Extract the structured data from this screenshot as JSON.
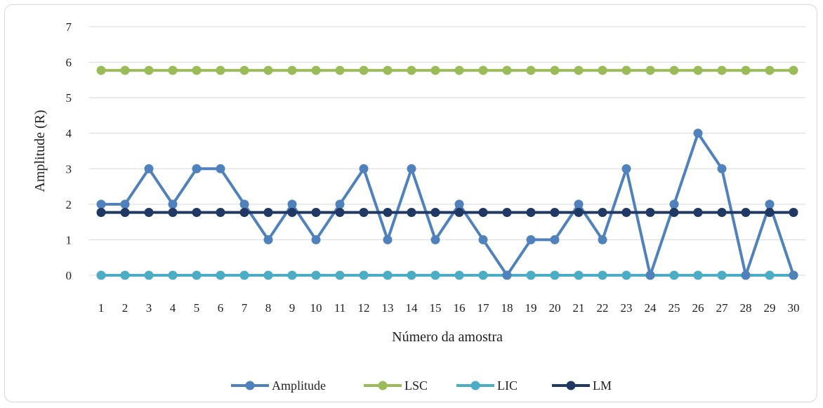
{
  "chart_data": {
    "type": "line",
    "title": "",
    "xlabel": "Número da amostra",
    "ylabel": "Amplitude (R)",
    "categories": [
      "1",
      "2",
      "3",
      "4",
      "5",
      "6",
      "7",
      "8",
      "9",
      "10",
      "11",
      "12",
      "13",
      "14",
      "15",
      "16",
      "17",
      "18",
      "19",
      "20",
      "21",
      "22",
      "23",
      "24",
      "25",
      "26",
      "27",
      "28",
      "29",
      "30"
    ],
    "ylim": [
      0,
      7
    ],
    "yticks": [
      "0",
      "1",
      "2",
      "3",
      "4",
      "5",
      "6",
      "7"
    ],
    "grid": "horizontal",
    "legend_position": "bottom",
    "series": [
      {
        "name": "Amplitude",
        "color": "#4f81bd",
        "values": [
          2,
          2,
          3,
          2,
          3,
          3,
          2,
          1,
          2,
          1,
          2,
          3,
          1,
          3,
          1,
          2,
          1,
          0,
          1,
          1,
          2,
          1,
          3,
          0,
          2,
          4,
          3,
          0,
          2,
          0
        ]
      },
      {
        "name": "LSC",
        "color": "#9bbb59",
        "values": [
          5.77,
          5.77,
          5.77,
          5.77,
          5.77,
          5.77,
          5.77,
          5.77,
          5.77,
          5.77,
          5.77,
          5.77,
          5.77,
          5.77,
          5.77,
          5.77,
          5.77,
          5.77,
          5.77,
          5.77,
          5.77,
          5.77,
          5.77,
          5.77,
          5.77,
          5.77,
          5.77,
          5.77,
          5.77,
          5.77
        ]
      },
      {
        "name": "LIC",
        "color": "#4bacc6",
        "values": [
          0,
          0,
          0,
          0,
          0,
          0,
          0,
          0,
          0,
          0,
          0,
          0,
          0,
          0,
          0,
          0,
          0,
          0,
          0,
          0,
          0,
          0,
          0,
          0,
          0,
          0,
          0,
          0,
          0,
          0
        ]
      },
      {
        "name": "LM",
        "color": "#1f3864",
        "values": [
          1.77,
          1.77,
          1.77,
          1.77,
          1.77,
          1.77,
          1.77,
          1.77,
          1.77,
          1.77,
          1.77,
          1.77,
          1.77,
          1.77,
          1.77,
          1.77,
          1.77,
          1.77,
          1.77,
          1.77,
          1.77,
          1.77,
          1.77,
          1.77,
          1.77,
          1.77,
          1.77,
          1.77,
          1.77,
          1.77
        ]
      }
    ],
    "draw_order": [
      "LSC",
      "LIC",
      "Amplitude",
      "LM"
    ]
  }
}
